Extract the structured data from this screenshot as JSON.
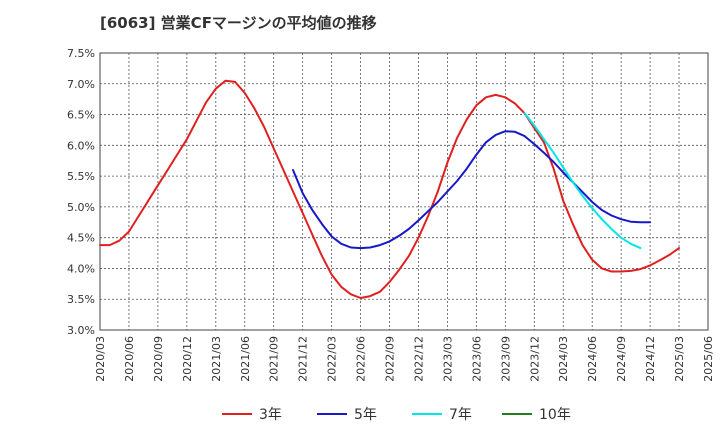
{
  "chart_data": {
    "type": "line",
    "title": "[6063]  営業CFマージンの平均値の推移",
    "ylim": [
      3.0,
      7.5
    ],
    "y_ticks": [
      "7.5%",
      "7.0%",
      "6.5%",
      "6.0%",
      "5.5%",
      "5.0%",
      "4.5%",
      "4.0%",
      "3.5%",
      "3.0%"
    ],
    "x_ticks": [
      "2020/03",
      "2020/06",
      "2020/09",
      "2020/12",
      "2021/03",
      "2021/06",
      "2021/09",
      "2021/12",
      "2022/03",
      "2022/06",
      "2022/09",
      "2022/12",
      "2023/03",
      "2023/06",
      "2023/09",
      "2023/12",
      "2024/03",
      "2024/06",
      "2024/09",
      "2024/12",
      "2025/03",
      "2025/06"
    ],
    "x_range_months": [
      0,
      63
    ],
    "grid": true,
    "legend_position": "bottom",
    "series": [
      {
        "name": "3年",
        "color": "#e02020",
        "data": [
          [
            "2020/03",
            4.38
          ],
          [
            "2020/04",
            4.38
          ],
          [
            "2020/05",
            4.45
          ],
          [
            "2020/06",
            4.6
          ],
          [
            "2020/07",
            4.85
          ],
          [
            "2020/08",
            5.1
          ],
          [
            "2020/09",
            5.35
          ],
          [
            "2020/10",
            5.6
          ],
          [
            "2020/11",
            5.85
          ],
          [
            "2020/12",
            6.1
          ],
          [
            "2021/01",
            6.4
          ],
          [
            "2021/02",
            6.7
          ],
          [
            "2021/03",
            6.92
          ],
          [
            "2021/04",
            7.05
          ],
          [
            "2021/05",
            7.03
          ],
          [
            "2021/06",
            6.85
          ],
          [
            "2021/07",
            6.6
          ],
          [
            "2021/08",
            6.3
          ],
          [
            "2021/09",
            5.95
          ],
          [
            "2021/10",
            5.6
          ],
          [
            "2021/11",
            5.25
          ],
          [
            "2021/12",
            4.9
          ],
          [
            "2022/01",
            4.55
          ],
          [
            "2022/02",
            4.2
          ],
          [
            "2022/03",
            3.9
          ],
          [
            "2022/04",
            3.7
          ],
          [
            "2022/05",
            3.58
          ],
          [
            "2022/06",
            3.52
          ],
          [
            "2022/07",
            3.55
          ],
          [
            "2022/08",
            3.62
          ],
          [
            "2022/09",
            3.78
          ],
          [
            "2022/10",
            3.98
          ],
          [
            "2022/11",
            4.2
          ],
          [
            "2022/12",
            4.5
          ],
          [
            "2023/01",
            4.85
          ],
          [
            "2023/02",
            5.25
          ],
          [
            "2023/03",
            5.72
          ],
          [
            "2023/04",
            6.12
          ],
          [
            "2023/05",
            6.42
          ],
          [
            "2023/06",
            6.65
          ],
          [
            "2023/07",
            6.78
          ],
          [
            "2023/08",
            6.82
          ],
          [
            "2023/09",
            6.78
          ],
          [
            "2023/10",
            6.68
          ],
          [
            "2023/11",
            6.52
          ],
          [
            "2023/12",
            6.28
          ],
          [
            "2024/01",
            6.05
          ],
          [
            "2024/02",
            5.62
          ],
          [
            "2024/03",
            5.1
          ],
          [
            "2024/04",
            4.72
          ],
          [
            "2024/05",
            4.38
          ],
          [
            "2024/06",
            4.14
          ],
          [
            "2024/07",
            4.0
          ],
          [
            "2024/08",
            3.95
          ],
          [
            "2024/09",
            3.95
          ],
          [
            "2024/10",
            3.96
          ],
          [
            "2024/11",
            3.99
          ],
          [
            "2024/12",
            4.05
          ],
          [
            "2025/01",
            4.13
          ],
          [
            "2025/02",
            4.22
          ],
          [
            "2025/03",
            4.33
          ]
        ]
      },
      {
        "name": "5年",
        "color": "#1818c8",
        "data": [
          [
            "2021/11",
            5.6
          ],
          [
            "2021/12",
            5.22
          ],
          [
            "2022/01",
            4.95
          ],
          [
            "2022/02",
            4.72
          ],
          [
            "2022/03",
            4.52
          ],
          [
            "2022/04",
            4.4
          ],
          [
            "2022/05",
            4.34
          ],
          [
            "2022/06",
            4.33
          ],
          [
            "2022/07",
            4.34
          ],
          [
            "2022/08",
            4.38
          ],
          [
            "2022/09",
            4.44
          ],
          [
            "2022/10",
            4.53
          ],
          [
            "2022/11",
            4.64
          ],
          [
            "2022/12",
            4.78
          ],
          [
            "2023/01",
            4.93
          ],
          [
            "2023/02",
            5.08
          ],
          [
            "2023/03",
            5.25
          ],
          [
            "2023/04",
            5.42
          ],
          [
            "2023/05",
            5.62
          ],
          [
            "2023/06",
            5.85
          ],
          [
            "2023/07",
            6.05
          ],
          [
            "2023/08",
            6.17
          ],
          [
            "2023/09",
            6.23
          ],
          [
            "2023/10",
            6.22
          ],
          [
            "2023/11",
            6.15
          ],
          [
            "2023/12",
            6.02
          ],
          [
            "2024/01",
            5.88
          ],
          [
            "2024/02",
            5.73
          ],
          [
            "2024/03",
            5.56
          ],
          [
            "2024/04",
            5.4
          ],
          [
            "2024/05",
            5.24
          ],
          [
            "2024/06",
            5.08
          ],
          [
            "2024/07",
            4.95
          ],
          [
            "2024/08",
            4.86
          ],
          [
            "2024/09",
            4.8
          ],
          [
            "2024/10",
            4.76
          ],
          [
            "2024/11",
            4.75
          ],
          [
            "2024/12",
            4.75
          ]
        ]
      },
      {
        "name": "7年",
        "color": "#00e5e5",
        "data": [
          [
            "2023/11",
            6.52
          ],
          [
            "2023/12",
            6.32
          ],
          [
            "2024/01",
            6.1
          ],
          [
            "2024/02",
            5.88
          ],
          [
            "2024/03",
            5.64
          ],
          [
            "2024/04",
            5.4
          ],
          [
            "2024/05",
            5.18
          ],
          [
            "2024/06",
            4.98
          ],
          [
            "2024/07",
            4.8
          ],
          [
            "2024/08",
            4.64
          ],
          [
            "2024/09",
            4.5
          ],
          [
            "2024/10",
            4.4
          ],
          [
            "2024/11",
            4.33
          ]
        ]
      },
      {
        "name": "10年",
        "color": "#208020",
        "data": []
      }
    ]
  }
}
